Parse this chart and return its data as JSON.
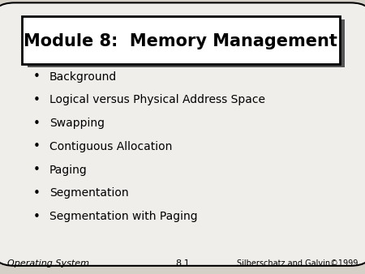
{
  "title": "Module 8:  Memory Management",
  "bullet_items": [
    "Background",
    "Logical versus Physical Address Space",
    "Swapping",
    "Contiguous Allocation",
    "Paging",
    "Segmentation",
    "Segmentation with Paging"
  ],
  "footer_left": "Operating System",
  "footer_center": "8.1",
  "footer_right": "Silberschatz and Galvin©1999",
  "bg_color": "#d4d0c8",
  "slide_bg": "#f0eeea",
  "title_box_bg": "#ffffff",
  "title_box_border": "#000000",
  "slide_border": "#000000",
  "text_color": "#000000",
  "title_fontsize": 15,
  "bullet_fontsize": 10,
  "footer_fontsize": 8
}
